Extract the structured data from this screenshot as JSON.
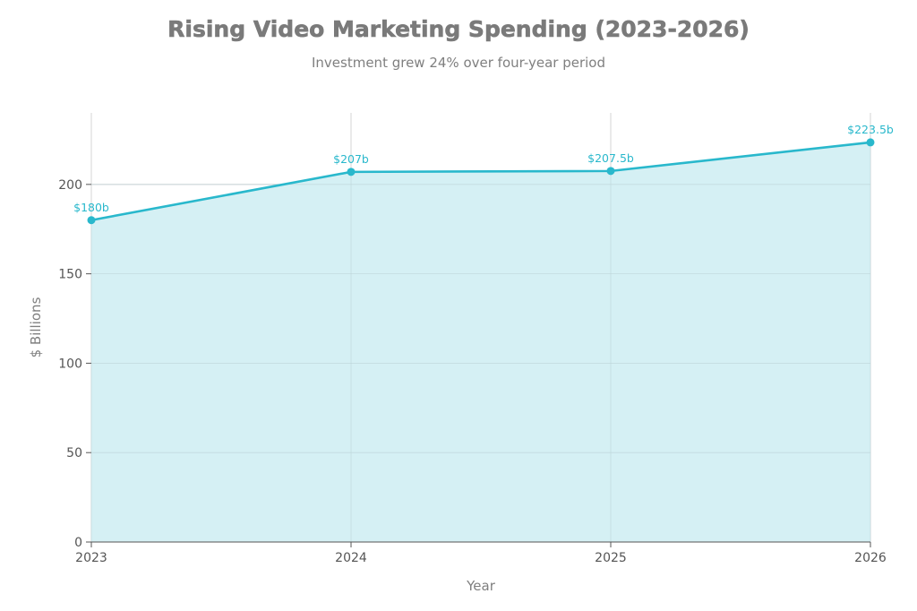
{
  "chart_data": {
    "type": "area",
    "title": "Rising Video Marketing Spending (2023-2026)",
    "subtitle": "Investment grew 24% over four-year period",
    "xlabel": "Year",
    "ylabel": "$ Billions",
    "categories": [
      "2023",
      "2024",
      "2025",
      "2026"
    ],
    "values": [
      180,
      207,
      207.5,
      223.5
    ],
    "data_labels": [
      "$180b",
      "$207b",
      "$207.5b",
      "$223.5b"
    ],
    "ylim": [
      0,
      240
    ],
    "yticks": [
      0,
      50,
      100,
      150,
      200
    ],
    "grid": true,
    "colors": {
      "line": "#29b8cc",
      "fill": "#d3eff3",
      "grid": "#d6d6d6",
      "axis": "#555555"
    }
  }
}
